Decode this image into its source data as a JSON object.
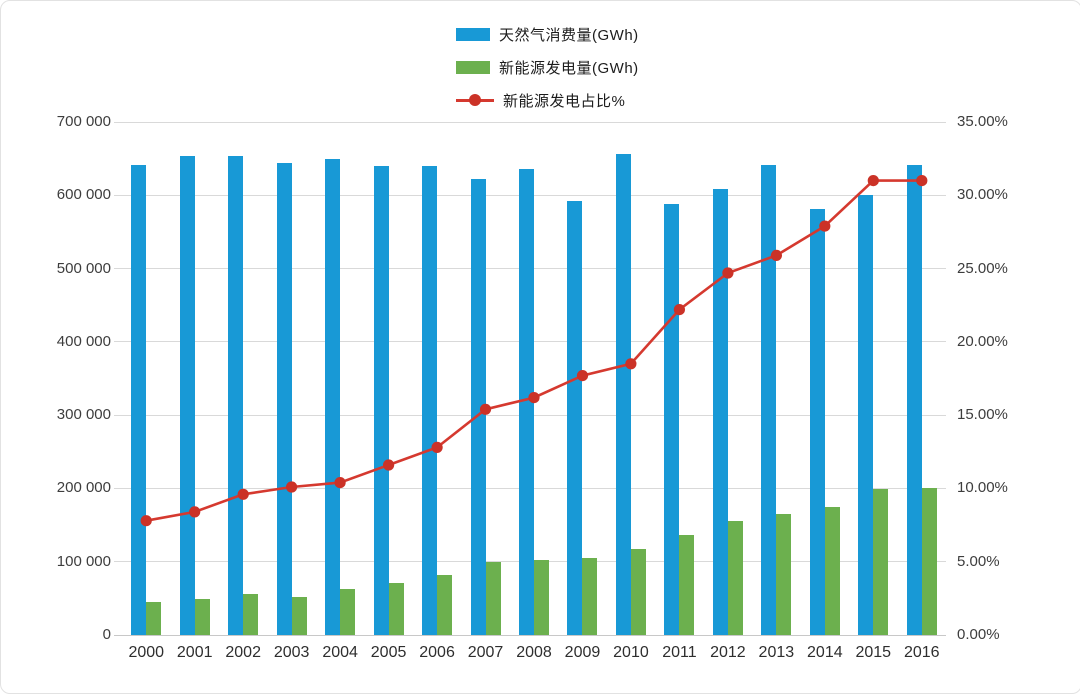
{
  "legend": {
    "items": [
      {
        "label": "天然气消费量(GWh)"
      },
      {
        "label": "新能源发电量(GWh)"
      },
      {
        "label": "新能源发电占比%"
      }
    ]
  },
  "colors": {
    "gas_bar": "#1899D6",
    "renewable_bar": "#6CB04E",
    "share_line": "#D5392F",
    "share_marker": "#CB3227",
    "gridline": "#D9D9D9",
    "baseline": "#C8C8C8"
  },
  "chart_data": {
    "type": "bar",
    "subtype": "combo-bar-line",
    "title": "",
    "x": [
      "2000",
      "2001",
      "2002",
      "2003",
      "2004",
      "2005",
      "2006",
      "2007",
      "2008",
      "2009",
      "2010",
      "2011",
      "2012",
      "2013",
      "2014",
      "2015",
      "2016"
    ],
    "series": [
      {
        "name": "天然气消费量(GWh)",
        "type": "bar",
        "axis": "left",
        "color": "#1899D6",
        "values": [
          641000,
          653000,
          653000,
          644000,
          650000,
          640000,
          640000,
          622000,
          636000,
          592000,
          656000,
          588000,
          608000,
          642000,
          581000,
          600000,
          641000
        ]
      },
      {
        "name": "新能源发电量(GWh)",
        "type": "bar",
        "axis": "left",
        "color": "#6CB04E",
        "values": [
          45000,
          49000,
          56000,
          52000,
          63000,
          71000,
          82000,
          99000,
          103000,
          105000,
          117000,
          136000,
          155000,
          165000,
          175000,
          199000,
          200000
        ]
      },
      {
        "name": "新能源发电占比%",
        "type": "line",
        "axis": "right",
        "color": "#D5392F",
        "marker_color": "#CB3227",
        "values": [
          7.8,
          8.4,
          9.6,
          10.1,
          10.4,
          11.6,
          12.8,
          15.4,
          16.2,
          17.7,
          18.5,
          22.2,
          24.7,
          25.9,
          27.9,
          31.0,
          31.0
        ]
      }
    ],
    "left_axis": {
      "min": 0,
      "max": 700000,
      "tick_labels": [
        "0",
        "100 000",
        "200 000",
        "300 000",
        "400 000",
        "500 000",
        "600 000",
        "700 000"
      ]
    },
    "right_axis": {
      "min": 0,
      "max": 35,
      "tick_labels": [
        "0.00%",
        "5.00%",
        "10.00%",
        "15.00%",
        "20.00%",
        "25.00%",
        "30.00%",
        "35.00%"
      ]
    },
    "grid": true,
    "legend_position": "top-center"
  }
}
